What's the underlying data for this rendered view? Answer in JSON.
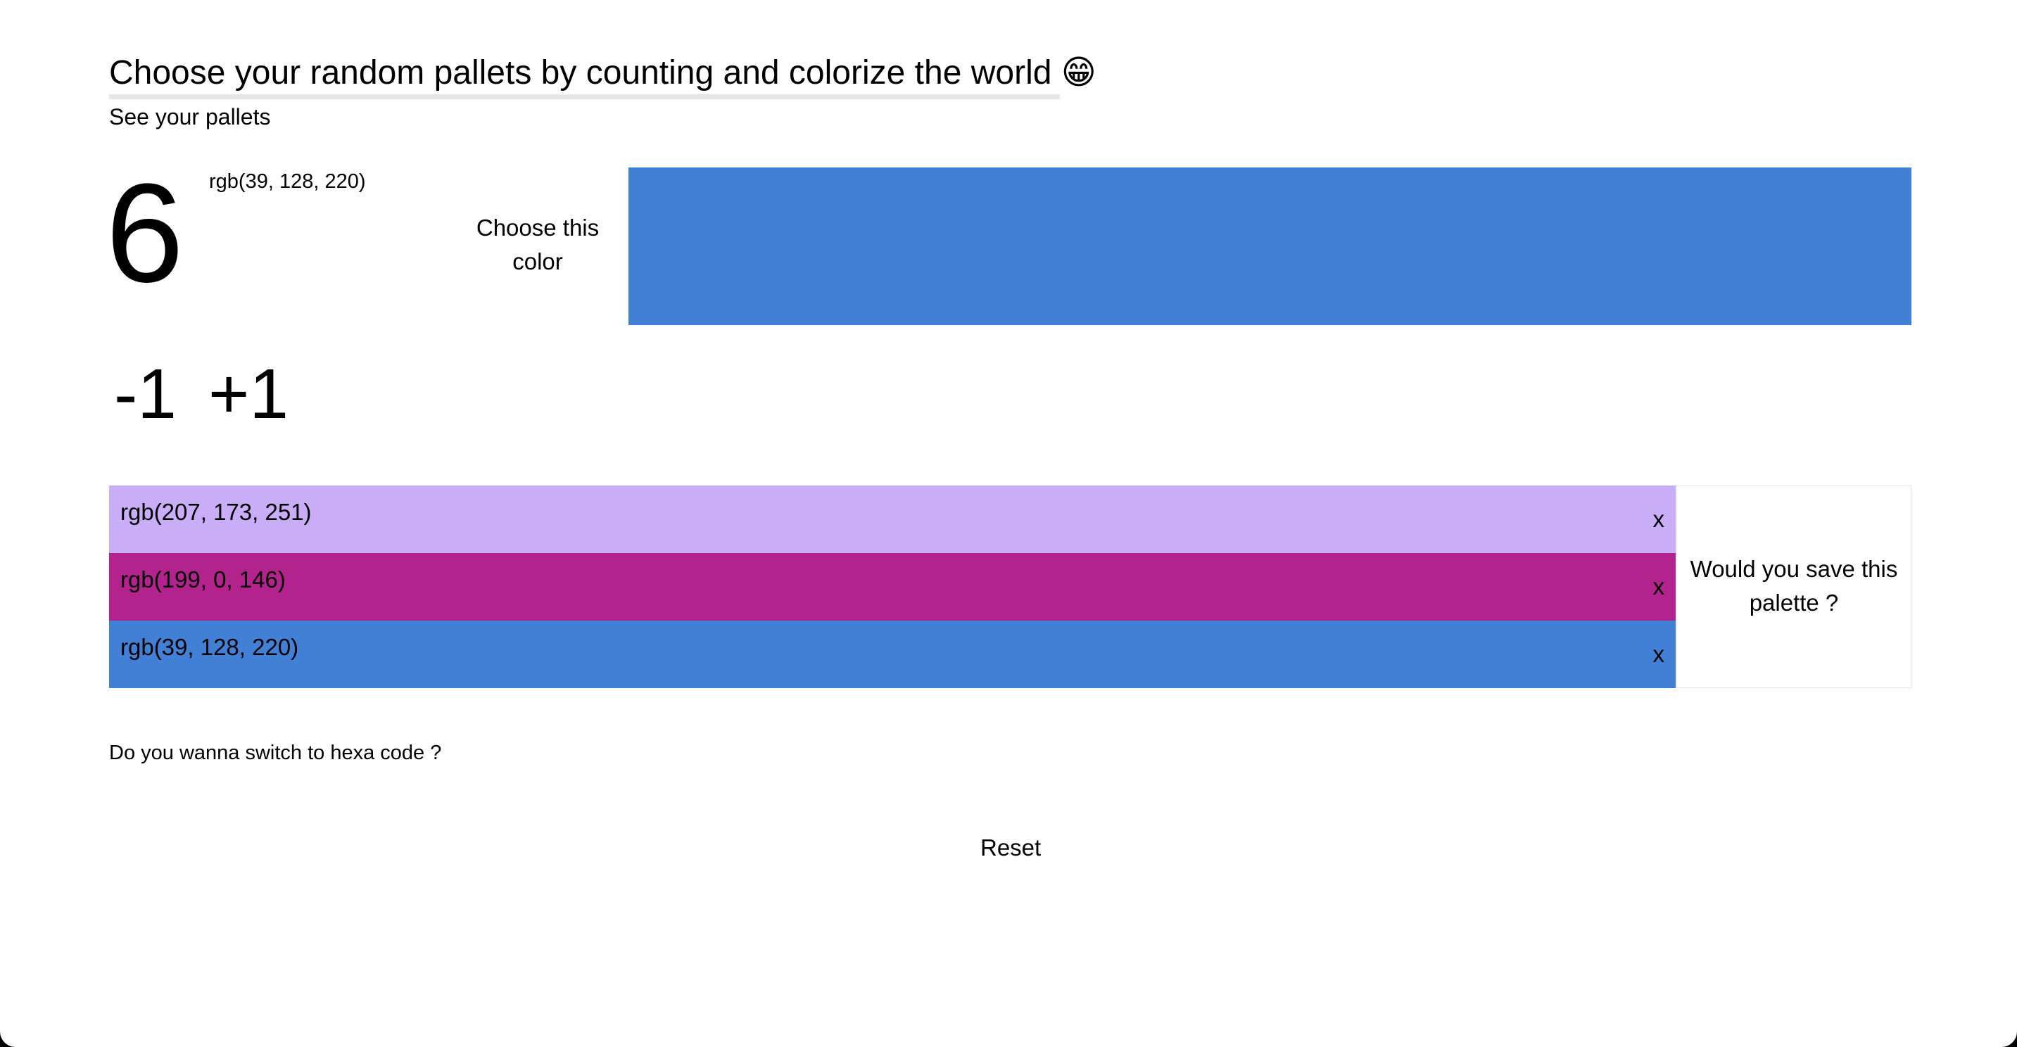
{
  "header": {
    "title": "Choose your random pallets by counting and colorize the world 😁",
    "subtitle": "See your pallets"
  },
  "counter": {
    "value": "6",
    "current_color_label": "rgb(39, 128, 220)",
    "decrement_label": "-1",
    "increment_label": "+1"
  },
  "picker": {
    "choose_label": "Choose this color",
    "swatch_color": "#4280d6"
  },
  "palette": {
    "rows": [
      {
        "label": "rgb(207, 173, 251)",
        "remove_label": "x",
        "color": "#c9aef7"
      },
      {
        "label": "rgb(199, 0, 146)",
        "remove_label": "x",
        "color": "#b3238d"
      },
      {
        "label": "rgb(39, 128, 220)",
        "remove_label": "x",
        "color": "#4280d6"
      }
    ],
    "save_label": "Would you save this palette ?"
  },
  "footer": {
    "hexa_label": "Do you wanna switch to hexa code ?",
    "reset_label": "Reset"
  },
  "colors": {
    "page_background": "#ffffff",
    "outer_frame": "#000000",
    "underline": "#e6e6e9"
  }
}
